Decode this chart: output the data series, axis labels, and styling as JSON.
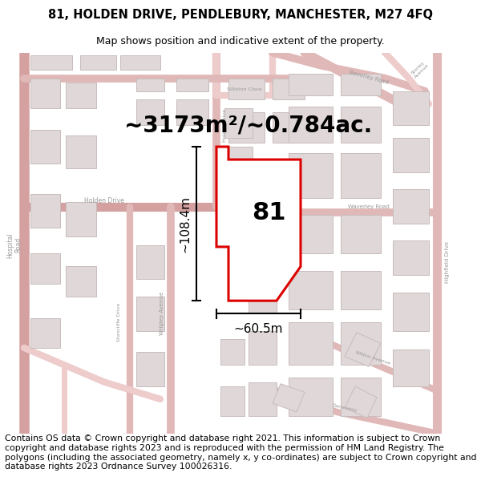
{
  "title_line1": "81, HOLDEN DRIVE, PENDLEBURY, MANCHESTER, M27 4FQ",
  "title_line2": "Map shows position and indicative extent of the property.",
  "area_text": "~3173m²/~0.784ac.",
  "label_81": "81",
  "dim_vertical": "~108.4m",
  "dim_horizontal": "~60.5m",
  "footer_text": "Contains OS data © Crown copyright and database right 2021. This information is subject to Crown copyright and database rights 2023 and is reproduced with the permission of HM Land Registry. The polygons (including the associated geometry, namely x, y co-ordinates) are subject to Crown copyright and database rights 2023 Ordnance Survey 100026316.",
  "bg_color": "#ffffff",
  "map_bg": "#f7f3f3",
  "road_color_main": "#d4a0a0",
  "road_color_minor": "#e0b8b8",
  "road_color_light": "#eecccc",
  "building_fill": "#e0d8d8",
  "building_edge": "#c8bcbc",
  "highlight_color": "#dd0000",
  "highlight_fill": "#ffffff",
  "dim_line_color": "#000000",
  "text_color_road": "#999999",
  "title_fontsize": 10.5,
  "subtitle_fontsize": 9.0,
  "area_fontsize": 20,
  "label_fontsize": 22,
  "dim_fontsize": 11,
  "footer_fontsize": 7.8,
  "road_label_fontsize": 5.5
}
